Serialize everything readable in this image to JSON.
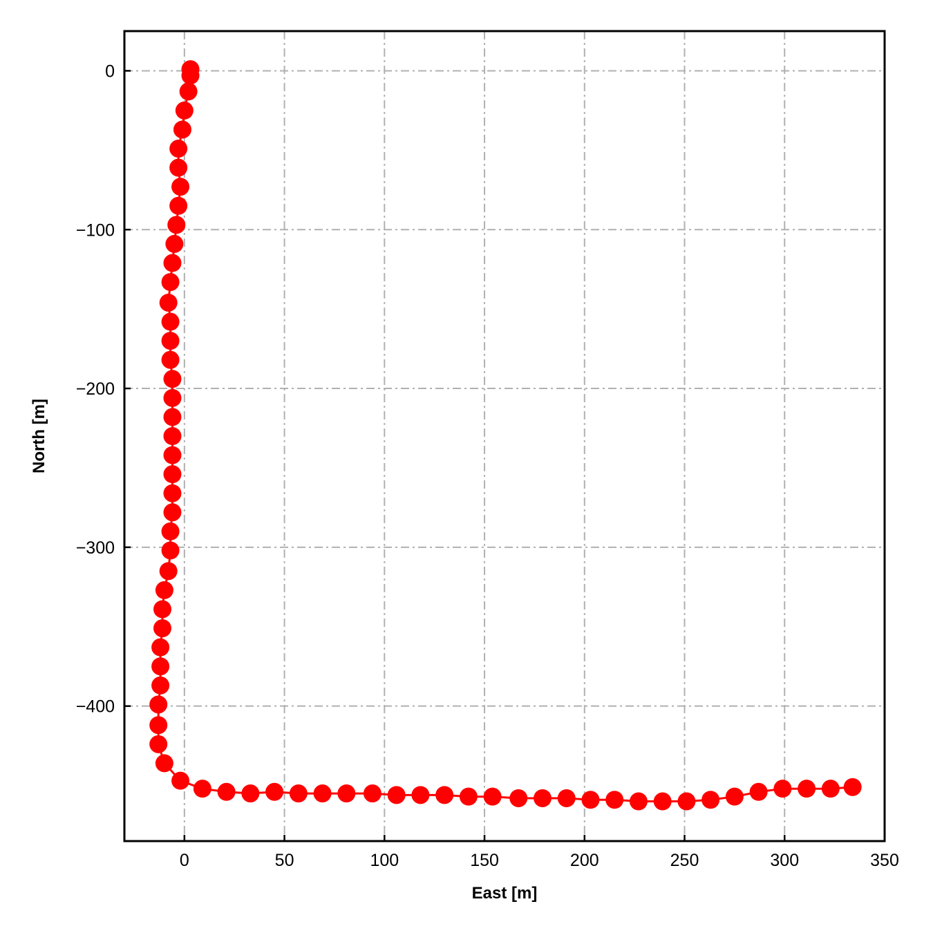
{
  "chart_data": {
    "type": "line",
    "title": "",
    "xlabel": "East [m]",
    "ylabel": "North [m]",
    "xlim": [
      -30,
      350
    ],
    "ylim": [
      -485,
      25
    ],
    "xticks": [
      0,
      50,
      100,
      150,
      200,
      250,
      300,
      350
    ],
    "yticks": [
      0,
      -100,
      -200,
      -300,
      -400
    ],
    "xtick_labels": [
      "0",
      "50",
      "100",
      "150",
      "200",
      "250",
      "300",
      "350"
    ],
    "ytick_labels": [
      "0",
      "−100",
      "−200",
      "−300",
      "−400"
    ],
    "grid": true,
    "color": "#ff0000",
    "series": [
      {
        "marker": "circle",
        "x": [
          3,
          3,
          2,
          0,
          -1,
          -3,
          -3,
          -2,
          -3,
          -4,
          -5,
          -6,
          -7,
          -8,
          -7,
          -7,
          -7,
          -6,
          -6,
          -6,
          -6,
          -6,
          -6,
          -6,
          -6,
          -7,
          -7,
          -8,
          -10,
          -11,
          -11,
          -12,
          -12,
          -12,
          -13,
          -13,
          -13,
          -10,
          -2,
          9,
          21,
          33,
          45,
          57,
          69,
          81,
          94,
          106,
          118,
          130,
          142,
          154,
          167,
          179,
          191,
          203,
          215,
          227,
          239,
          251,
          263,
          275,
          287,
          299,
          311,
          323,
          334
        ],
        "y": [
          1,
          -3,
          -13,
          -25,
          -37,
          -49,
          -61,
          -73,
          -85,
          -97,
          -109,
          -121,
          -133,
          -146,
          -158,
          -170,
          -182,
          -194,
          -206,
          -218,
          -230,
          -242,
          -254,
          -266,
          -278,
          -290,
          -302,
          -315,
          -327,
          -339,
          -351,
          -363,
          -375,
          -387,
          -399,
          -412,
          -424,
          -436,
          -447,
          -452,
          -454,
          -455,
          -454,
          -455,
          -455,
          -455,
          -455,
          -456,
          -456,
          -456,
          -457,
          -457,
          -458,
          -458,
          -458,
          -459,
          -459,
          -460,
          -460,
          -460,
          -459,
          -457,
          -454,
          -452,
          -452,
          -452,
          -451
        ]
      }
    ]
  }
}
